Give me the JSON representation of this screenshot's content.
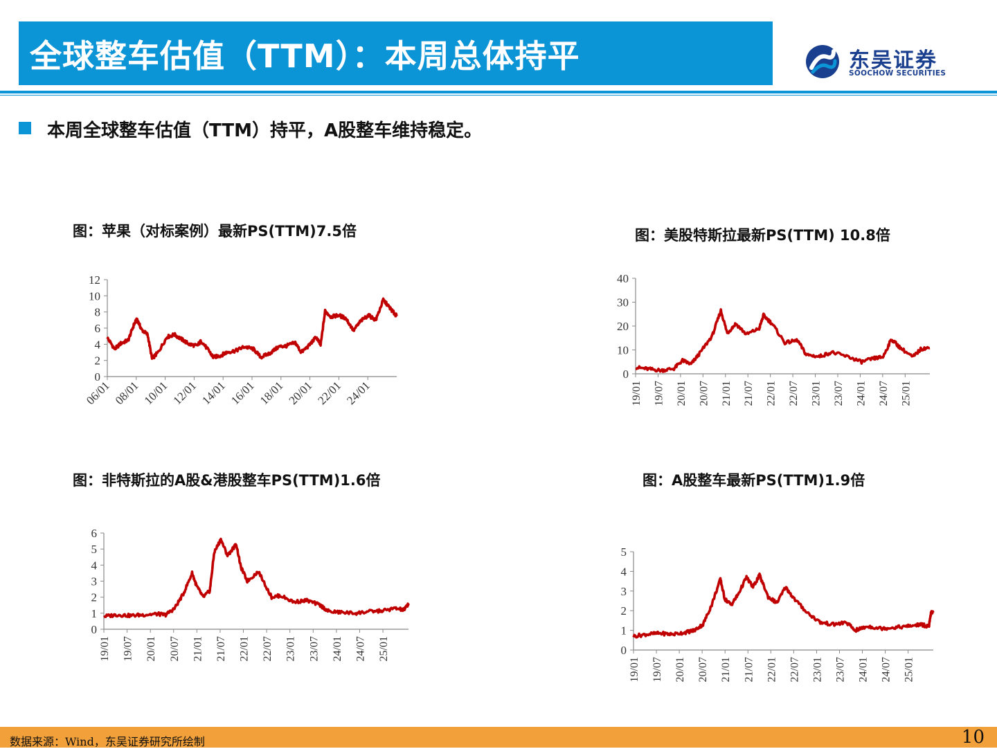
{
  "header": {
    "title": "全球整车估值（TTM）：本周总体持平",
    "logo_name": "东吴证券",
    "logo_en": "SOOCHOW SECURITIES",
    "accent": "#0b94d6",
    "logo_color": "#1a3f8f"
  },
  "bullet": {
    "text": "本周全球整车估值（TTM）持平，A股整车维持稳定。"
  },
  "footer": {
    "source": "数据来源：Wind，东吴证券研究所绘制",
    "page": "10",
    "color": "#f2a03a"
  },
  "chart_data": [
    {
      "type": "line",
      "title": "图：苹果（对标案例）最新PS(TTM)7.5倍",
      "color": "#c00000",
      "ylim": [
        0,
        12
      ],
      "yticks": [
        "0",
        "2",
        "4",
        "6",
        "8",
        "10",
        "12"
      ],
      "xticks": [
        "06/01",
        "08/01",
        "10/01",
        "12/01",
        "14/01",
        "16/01",
        "18/01",
        "20/01",
        "22/01",
        "24/01"
      ],
      "xrange": [
        2006.0,
        2025.4
      ],
      "x": [
        2006.0,
        2006.5,
        2006.9,
        2007.4,
        2007.8,
        2008.0,
        2008.3,
        2008.7,
        2009.0,
        2009.4,
        2010.0,
        2010.5,
        2011.0,
        2011.5,
        2012.0,
        2012.3,
        2012.8,
        2013.1,
        2013.6,
        2014.0,
        2014.6,
        2015.2,
        2015.8,
        2016.3,
        2016.9,
        2017.5,
        2018.0,
        2018.6,
        2019.0,
        2019.5,
        2020.0,
        2020.3,
        2020.6,
        2021.0,
        2021.5,
        2022.0,
        2022.5,
        2023.0,
        2023.5,
        2024.0,
        2024.5,
        2024.9,
        2025.2,
        2025.4
      ],
      "y": [
        4.8,
        3.4,
        4.1,
        4.5,
        6.5,
        7.1,
        5.8,
        5.2,
        2.2,
        3.0,
        4.9,
        5.2,
        4.6,
        4.0,
        3.8,
        4.4,
        3.2,
        2.4,
        2.6,
        3.0,
        3.2,
        3.7,
        3.4,
        2.4,
        2.9,
        3.7,
        3.8,
        4.2,
        3.0,
        3.8,
        4.9,
        3.9,
        8.1,
        7.4,
        7.6,
        7.2,
        5.7,
        6.9,
        7.6,
        7.0,
        9.5,
        8.6,
        7.9,
        7.5
      ]
    },
    {
      "type": "line",
      "title": "图：美股特斯拉最新PS(TTM) 10.8倍",
      "color": "#c00000",
      "ylim": [
        0,
        40
      ],
      "yticks": [
        "0",
        "10",
        "20",
        "30",
        "40"
      ],
      "xticks": [
        "19/01",
        "19/07",
        "20/01",
        "20/07",
        "21/01",
        "21/07",
        "22/01",
        "22/07",
        "23/01",
        "23/07",
        "24/01",
        "24/07",
        "25/01"
      ],
      "xrange": [
        2019.0,
        2025.9
      ],
      "x": [
        2019.0,
        2019.3,
        2019.6,
        2019.9,
        2020.1,
        2020.3,
        2020.5,
        2020.8,
        2021.0,
        2021.15,
        2021.35,
        2021.6,
        2021.9,
        2022.0,
        2022.2,
        2022.5,
        2022.8,
        2023.0,
        2023.3,
        2023.6,
        2024.0,
        2024.3,
        2024.6,
        2024.8,
        2025.0,
        2025.2,
        2025.5,
        2025.7,
        2025.9
      ],
      "y": [
        2.7,
        2.0,
        1.4,
        2.2,
        5.6,
        4.0,
        8.5,
        16.0,
        26.5,
        17.0,
        21.0,
        16.5,
        19.0,
        24.5,
        21.0,
        13.0,
        14.0,
        8.0,
        7.2,
        9.0,
        7.0,
        5.0,
        6.5,
        7.0,
        14.5,
        11.0,
        7.0,
        10.5,
        10.8
      ]
    },
    {
      "type": "line",
      "title": "图：非特斯拉的A股&港股整车PS(TTM)1.6倍",
      "color": "#c00000",
      "ylim": [
        0,
        6
      ],
      "yticks": [
        "0",
        "1",
        "2",
        "3",
        "4",
        "5",
        "6"
      ],
      "xticks": [
        "19/01",
        "19/07",
        "20/01",
        "20/07",
        "21/01",
        "21/07",
        "22/01",
        "22/07",
        "23/01",
        "23/07",
        "24/01",
        "24/07",
        "25/01"
      ],
      "xrange": [
        2019.0,
        2025.9
      ],
      "x": [
        2019.0,
        2019.3,
        2019.6,
        2019.9,
        2020.2,
        2020.4,
        2020.6,
        2020.8,
        2021.0,
        2021.1,
        2021.25,
        2021.4,
        2021.5,
        2021.65,
        2021.8,
        2022.0,
        2022.1,
        2022.25,
        2022.5,
        2022.8,
        2023.0,
        2023.3,
        2023.6,
        2023.9,
        2024.1,
        2024.4,
        2024.7,
        2025.0,
        2025.3,
        2025.6,
        2025.8,
        2025.9
      ],
      "y": [
        0.8,
        0.9,
        0.85,
        0.9,
        0.95,
        0.9,
        1.3,
        2.2,
        3.5,
        2.7,
        2.0,
        2.4,
        4.8,
        5.6,
        4.6,
        5.3,
        3.9,
        3.0,
        3.6,
        2.0,
        2.1,
        1.7,
        1.8,
        1.5,
        1.1,
        1.05,
        1.0,
        1.1,
        1.15,
        1.3,
        1.2,
        1.6
      ]
    },
    {
      "type": "line",
      "title": "图：A股整车最新PS(TTM)1.9倍",
      "color": "#c00000",
      "ylim": [
        0,
        5
      ],
      "yticks": [
        "0",
        "1",
        "2",
        "3",
        "4",
        "5"
      ],
      "xticks": [
        "19/01",
        "19/07",
        "20/01",
        "20/07",
        "21/01",
        "21/07",
        "22/01",
        "22/07",
        "23/01",
        "23/07",
        "24/01",
        "24/07",
        "25/01"
      ],
      "xrange": [
        2019.0,
        2025.9
      ],
      "x": [
        2019.0,
        2019.3,
        2019.6,
        2019.9,
        2020.2,
        2020.4,
        2020.6,
        2020.8,
        2021.0,
        2021.1,
        2021.25,
        2021.4,
        2021.6,
        2021.75,
        2021.9,
        2022.1,
        2022.3,
        2022.5,
        2022.7,
        2023.0,
        2023.3,
        2023.6,
        2023.9,
        2024.1,
        2024.4,
        2024.7,
        2025.0,
        2025.3,
        2025.6,
        2025.8,
        2025.85,
        2025.9
      ],
      "y": [
        0.7,
        0.8,
        0.85,
        0.8,
        0.9,
        1.0,
        1.3,
        2.3,
        3.6,
        2.6,
        2.3,
        2.8,
        3.7,
        3.2,
        3.8,
        2.7,
        2.4,
        3.2,
        2.6,
        1.9,
        1.4,
        1.3,
        1.4,
        1.0,
        1.2,
        1.1,
        1.15,
        1.2,
        1.3,
        1.2,
        1.9,
        1.9
      ]
    }
  ]
}
